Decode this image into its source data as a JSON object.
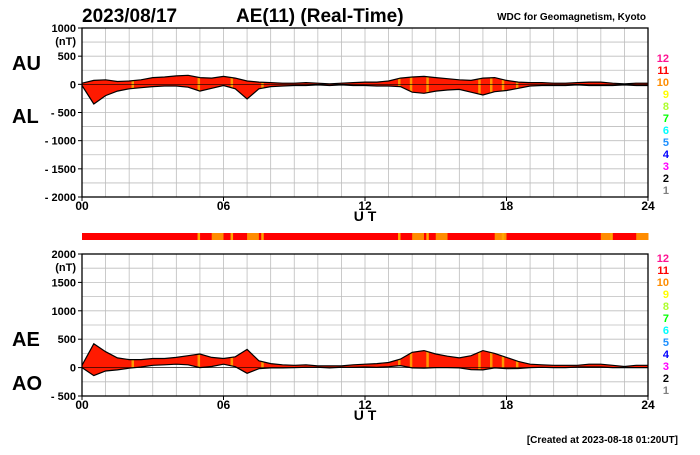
{
  "header": {
    "date": "2023/08/17",
    "title": "AE(11) (Real-Time)",
    "source": "WDC for Geomagnetism, Kyoto"
  },
  "footer": {
    "created": "[Created at 2023-08-18 01:20UT]"
  },
  "station_colors": [
    "#ff1493",
    "#ff0000",
    "#ff8c00",
    "#ffff00",
    "#adff2f",
    "#00ff00",
    "#00ffff",
    "#1e90ff",
    "#0000ff",
    "#ff00ff",
    "#000000",
    "#808080",
    "#d3d3d3"
  ],
  "chart_data": [
    {
      "type": "area",
      "id": "au-al",
      "title": "AE(11) (Real-Time)",
      "ylabel_unit": "(nT)",
      "series_labels": [
        "AU",
        "AL"
      ],
      "xlabel": "U T",
      "x_ticks": [
        "00",
        "06",
        "12",
        "18",
        "24"
      ],
      "xlim": [
        0,
        24
      ],
      "ylim": [
        -2000,
        1000
      ],
      "y_ticks": [
        {
          "value": 1000,
          "label": "1000"
        },
        {
          "value": 500,
          "label": "500"
        },
        {
          "value": 0,
          "label": "0"
        },
        {
          "value": -500,
          "label": "- 500"
        },
        {
          "value": -1000,
          "label": "- 1000"
        },
        {
          "value": -1500,
          "label": "- 1500"
        },
        {
          "value": -2000,
          "label": "- 2000"
        }
      ],
      "station_count_legend": [
        "12",
        "11",
        "10",
        "9",
        "8",
        "7",
        "6",
        "5",
        "4",
        "3",
        "2",
        "1"
      ],
      "x": [
        0,
        0.5,
        1,
        1.5,
        2,
        2.5,
        3,
        3.5,
        4,
        4.5,
        5,
        5.5,
        6,
        6.5,
        7,
        7.5,
        8,
        8.5,
        9,
        9.5,
        10,
        10.5,
        11,
        11.5,
        12,
        12.5,
        13,
        13.5,
        14,
        14.5,
        15,
        15.5,
        16,
        16.5,
        17,
        17.5,
        18,
        18.5,
        19,
        19.5,
        20,
        20.5,
        21,
        21.5,
        22,
        22.5,
        23,
        23.5,
        24
      ],
      "series": [
        {
          "name": "AU",
          "values": [
            20,
            70,
            80,
            50,
            60,
            80,
            120,
            130,
            150,
            160,
            120,
            110,
            140,
            110,
            60,
            40,
            30,
            20,
            20,
            30,
            20,
            10,
            20,
            30,
            40,
            40,
            60,
            110,
            130,
            140,
            120,
            100,
            80,
            70,
            110,
            120,
            70,
            40,
            30,
            30,
            20,
            20,
            30,
            40,
            40,
            20,
            10,
            20,
            20
          ]
        },
        {
          "name": "AL",
          "values": [
            -20,
            -350,
            -200,
            -120,
            -80,
            -60,
            -40,
            -30,
            -30,
            -50,
            -120,
            -70,
            -20,
            -80,
            -260,
            -80,
            -40,
            -30,
            -20,
            -20,
            -10,
            -20,
            -10,
            -20,
            -20,
            -30,
            -30,
            -40,
            -140,
            -160,
            -120,
            -100,
            -90,
            -140,
            -190,
            -130,
            -110,
            -70,
            -30,
            -20,
            -20,
            -20,
            -10,
            -20,
            -20,
            -20,
            -10,
            -20,
            -20
          ]
        }
      ],
      "station_count_band": [
        11,
        11,
        11,
        11,
        11,
        11,
        11,
        11,
        11,
        11,
        11,
        10,
        11,
        11,
        10,
        11,
        11,
        11,
        11,
        11,
        11,
        11,
        11,
        11,
        11,
        11,
        11,
        11,
        10,
        11,
        10,
        11,
        11,
        11,
        11,
        10,
        11,
        11,
        11,
        11,
        11,
        11,
        11,
        11,
        10,
        11,
        11,
        10
      ]
    },
    {
      "type": "area",
      "id": "ae-ao",
      "ylabel_unit": "(nT)",
      "series_labels": [
        "AE",
        "AO"
      ],
      "xlabel": "U T",
      "x_ticks": [
        "00",
        "06",
        "12",
        "18",
        "24"
      ],
      "xlim": [
        0,
        24
      ],
      "ylim": [
        -500,
        2000
      ],
      "y_ticks": [
        {
          "value": 2000,
          "label": "2000"
        },
        {
          "value": 1500,
          "label": "1500"
        },
        {
          "value": 1000,
          "label": "1000"
        },
        {
          "value": 500,
          "label": "500"
        },
        {
          "value": 0,
          "label": "0"
        },
        {
          "value": -500,
          "label": "- 500"
        }
      ],
      "station_count_legend": [
        "12",
        "11",
        "10",
        "9",
        "8",
        "7",
        "6",
        "5",
        "4",
        "3",
        "2",
        "1"
      ],
      "x": [
        0,
        0.5,
        1,
        1.5,
        2,
        2.5,
        3,
        3.5,
        4,
        4.5,
        5,
        5.5,
        6,
        6.5,
        7,
        7.5,
        8,
        8.5,
        9,
        9.5,
        10,
        10.5,
        11,
        11.5,
        12,
        12.5,
        13,
        13.5,
        14,
        14.5,
        15,
        15.5,
        16,
        16.5,
        17,
        17.5,
        18,
        18.5,
        19,
        19.5,
        20,
        20.5,
        21,
        21.5,
        22,
        22.5,
        23,
        23.5,
        24
      ],
      "series": [
        {
          "name": "AE",
          "values": [
            40,
            420,
            280,
            170,
            140,
            140,
            160,
            160,
            180,
            210,
            240,
            180,
            160,
            190,
            320,
            120,
            70,
            50,
            40,
            50,
            30,
            30,
            30,
            50,
            60,
            70,
            90,
            150,
            270,
            300,
            240,
            200,
            170,
            210,
            300,
            250,
            180,
            110,
            60,
            50,
            40,
            40,
            40,
            60,
            60,
            40,
            20,
            40,
            40
          ]
        },
        {
          "name": "AO",
          "values": [
            0,
            -140,
            -60,
            -40,
            -10,
            10,
            40,
            50,
            60,
            50,
            0,
            20,
            60,
            15,
            -100,
            -20,
            -5,
            -5,
            0,
            5,
            5,
            -5,
            5,
            5,
            10,
            5,
            15,
            35,
            -5,
            -10,
            0,
            0,
            -5,
            -35,
            -40,
            -5,
            -20,
            -15,
            0,
            5,
            0,
            0,
            10,
            10,
            10,
            0,
            0,
            0,
            0
          ]
        }
      ]
    }
  ]
}
